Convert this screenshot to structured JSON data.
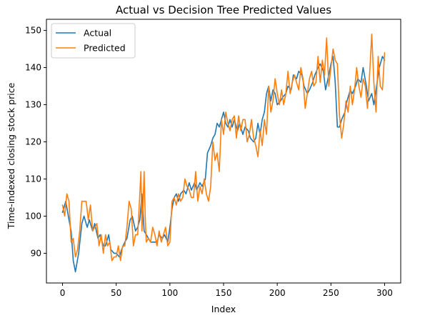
{
  "chart_data": {
    "type": "line",
    "title": "Actual vs Decision Tree Predicted Values",
    "xlabel": "Index",
    "ylabel": "Time-indexed closing stock price",
    "xlim": [
      -15,
      315
    ],
    "ylim": [
      82,
      153
    ],
    "xticks": [
      0,
      50,
      100,
      150,
      200,
      250,
      300
    ],
    "yticks": [
      90,
      100,
      110,
      120,
      130,
      140,
      150
    ],
    "xtick_labels": [
      "0",
      "50",
      "100",
      "150",
      "200",
      "250",
      "300"
    ],
    "ytick_labels": [
      "90",
      "100",
      "110",
      "120",
      "130",
      "140",
      "150"
    ],
    "legend": {
      "position": "top-left"
    },
    "series": [
      {
        "name": "Actual",
        "color": "#1f77b4",
        "x": [
          0,
          3,
          6,
          8,
          10,
          12,
          15,
          18,
          20,
          23,
          25,
          28,
          30,
          33,
          35,
          38,
          40,
          43,
          45,
          48,
          50,
          53,
          55,
          58,
          60,
          63,
          65,
          68,
          70,
          72,
          74,
          76,
          78,
          80,
          82,
          85,
          88,
          90,
          93,
          95,
          98,
          100,
          102,
          104,
          106,
          108,
          110,
          113,
          115,
          118,
          120,
          123,
          125,
          128,
          130,
          133,
          135,
          138,
          140,
          142,
          144,
          146,
          148,
          150,
          152,
          154,
          156,
          158,
          160,
          163,
          165,
          168,
          170,
          173,
          175,
          178,
          180,
          182,
          184,
          186,
          188,
          190,
          192,
          194,
          196,
          198,
          200,
          203,
          205,
          208,
          210,
          213,
          215,
          218,
          220,
          223,
          225,
          228,
          230,
          233,
          235,
          238,
          240,
          243,
          245,
          248,
          250,
          252,
          254,
          256,
          258,
          260,
          263,
          265,
          268,
          270,
          273,
          275,
          278,
          280,
          283,
          285,
          288,
          290,
          293,
          295,
          298,
          300
        ],
        "values": [
          101,
          104,
          99,
          96,
          88,
          85,
          90,
          98,
          100,
          97,
          99,
          96,
          98,
          94,
          95,
          92,
          92,
          95,
          91,
          90,
          90,
          89,
          91,
          93,
          94,
          99,
          100,
          96,
          97,
          99,
          106,
          96,
          95,
          94,
          93,
          93,
          93,
          95,
          94,
          95,
          93,
          97,
          102,
          105,
          106,
          104,
          106,
          107,
          106,
          109,
          107,
          109,
          107,
          109,
          108,
          110,
          117,
          119,
          121,
          122,
          125,
          124,
          126,
          128,
          125,
          124,
          126,
          124,
          126,
          123,
          125,
          122,
          124,
          123,
          121,
          120,
          121,
          125,
          122,
          126,
          128,
          133,
          135,
          131,
          134,
          133,
          130,
          131,
          132,
          133,
          135,
          134,
          138,
          137,
          139,
          138,
          135,
          133,
          134,
          136,
          138,
          140,
          141,
          139,
          134,
          138,
          141,
          143,
          136,
          124,
          124,
          126,
          128,
          131,
          134,
          133,
          135,
          137,
          136,
          140,
          135,
          131,
          133,
          130,
          136,
          140,
          143,
          142
        ]
      },
      {
        "name": "Predicted",
        "color": "#ff7f0e",
        "x": [
          0,
          2,
          4,
          6,
          8,
          10,
          12,
          14,
          16,
          18,
          20,
          22,
          24,
          26,
          28,
          30,
          32,
          34,
          36,
          38,
          40,
          42,
          44,
          46,
          48,
          50,
          52,
          54,
          56,
          58,
          60,
          62,
          64,
          66,
          68,
          70,
          72,
          73,
          74,
          75,
          76,
          77,
          78,
          80,
          82,
          84,
          86,
          88,
          90,
          92,
          94,
          96,
          98,
          100,
          102,
          104,
          106,
          108,
          110,
          112,
          114,
          116,
          118,
          120,
          122,
          124,
          126,
          128,
          130,
          132,
          134,
          136,
          138,
          140,
          142,
          144,
          146,
          148,
          150,
          152,
          154,
          156,
          158,
          160,
          162,
          164,
          166,
          168,
          170,
          172,
          174,
          176,
          178,
          180,
          182,
          184,
          186,
          188,
          190,
          192,
          194,
          196,
          198,
          200,
          202,
          204,
          206,
          208,
          210,
          212,
          214,
          216,
          218,
          220,
          222,
          224,
          226,
          228,
          230,
          232,
          234,
          236,
          238,
          240,
          242,
          244,
          246,
          248,
          250,
          252,
          254,
          256,
          258,
          260,
          262,
          264,
          266,
          268,
          270,
          272,
          274,
          276,
          278,
          280,
          282,
          284,
          286,
          288,
          290,
          292,
          294,
          296,
          298,
          300
        ],
        "values": [
          103,
          100,
          106,
          104,
          93,
          94,
          89,
          91,
          96,
          104,
          104,
          104,
          99,
          103,
          96,
          97,
          98,
          92,
          95,
          90,
          95,
          92,
          93,
          88,
          89,
          89,
          92,
          88,
          92,
          92,
          97,
          104,
          102,
          92,
          95,
          95,
          106,
          112,
          96,
          103,
          112,
          100,
          93,
          94,
          93,
          97,
          95,
          92,
          96,
          93,
          95,
          97,
          92,
          93,
          104,
          105,
          103,
          106,
          104,
          105,
          110,
          108,
          107,
          105,
          105,
          112,
          104,
          108,
          106,
          110,
          106,
          104,
          108,
          120,
          115,
          117,
          112,
          126,
          122,
          128,
          125,
          123,
          126,
          127,
          121,
          127,
          123,
          126,
          126,
          120,
          122,
          126,
          121,
          119,
          116,
          123,
          119,
          126,
          122,
          135,
          128,
          131,
          137,
          133,
          130,
          134,
          130,
          133,
          139,
          133,
          136,
          138,
          136,
          134,
          140,
          137,
          129,
          133,
          137,
          139,
          135,
          136,
          143,
          136,
          142,
          138,
          148,
          135,
          140,
          145,
          142,
          141,
          127,
          121,
          125,
          131,
          128,
          135,
          130,
          134,
          140,
          135,
          132,
          137,
          135,
          129,
          138,
          149,
          136,
          128,
          143,
          135,
          134,
          144
        ]
      }
    ]
  }
}
